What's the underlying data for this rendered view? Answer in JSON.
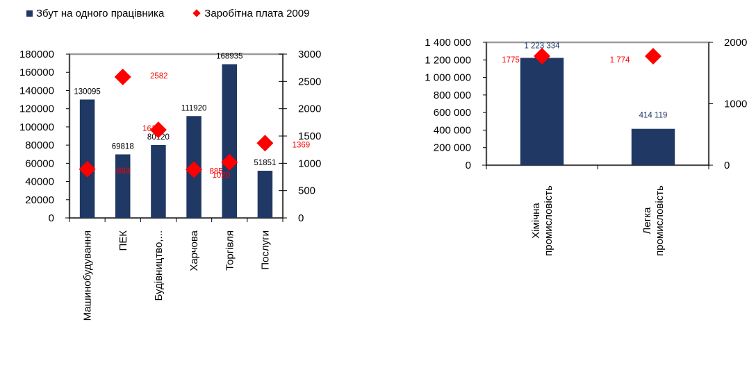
{
  "legend": {
    "bar_series": "Збут на одного працівника",
    "point_series": "Заробітна плата 2009"
  },
  "colors": {
    "bar": "#1f3864",
    "point": "#ff0000",
    "plot_area": "#ffffff",
    "bar_label": "#000000",
    "bar_label_right": "#1f3864"
  },
  "chart_data": [
    {
      "type": "bar",
      "categories": [
        "Машинобудування",
        "ПЕК",
        "Будівництво,...",
        "Харчова",
        "Торгівля",
        "Послуги"
      ],
      "series": [
        {
          "name": "Збут на одного працівника",
          "values": [
            130095,
            69818,
            80120,
            111920,
            168935,
            51851
          ],
          "axis": "left"
        },
        {
          "name": "Заробітна плата 2009",
          "values": [
            893,
            2582,
            1613,
            885,
            1020,
            1369
          ],
          "axis": "right",
          "kind": "point"
        }
      ],
      "bar_labels": [
        "130095",
        "69818",
        "80120",
        "111920",
        "168935",
        "51851"
      ],
      "point_labels": [
        "893",
        "2582",
        "1613",
        "885",
        "1020",
        "1369"
      ],
      "ylim": [
        0,
        180000
      ],
      "yticks": [
        "0",
        "20000",
        "40000",
        "60000",
        "80000",
        "100000",
        "120000",
        "140000",
        "160000",
        "180000"
      ],
      "y2lim": [
        0,
        3000
      ],
      "y2ticks": [
        "0",
        "500",
        "1000",
        "1500",
        "2000",
        "2500",
        "3000"
      ],
      "grid": false,
      "legend": "top-left"
    },
    {
      "type": "bar",
      "categories": [
        "Хімічна промисловість",
        "Легка промисловість"
      ],
      "series": [
        {
          "name": "Збут на одного працівника",
          "values": [
            1223334,
            414119
          ],
          "axis": "left"
        },
        {
          "name": "Заробітна плата 2009",
          "values": [
            1775,
            1774
          ],
          "axis": "right",
          "kind": "point"
        }
      ],
      "bar_labels": [
        "1 223 334",
        "414 119"
      ],
      "point_labels": [
        "1775",
        "1 774"
      ],
      "ylim": [
        0,
        1400000
      ],
      "yticks": [
        "0",
        "200 000",
        "400 000",
        "600 000",
        "800 000",
        "1 000 000",
        "1 200 000",
        "1 400 000"
      ],
      "y2lim": [
        0,
        2000
      ],
      "y2ticks": [
        "0",
        "1000",
        "2000"
      ],
      "grid": false,
      "legend": "none"
    }
  ]
}
